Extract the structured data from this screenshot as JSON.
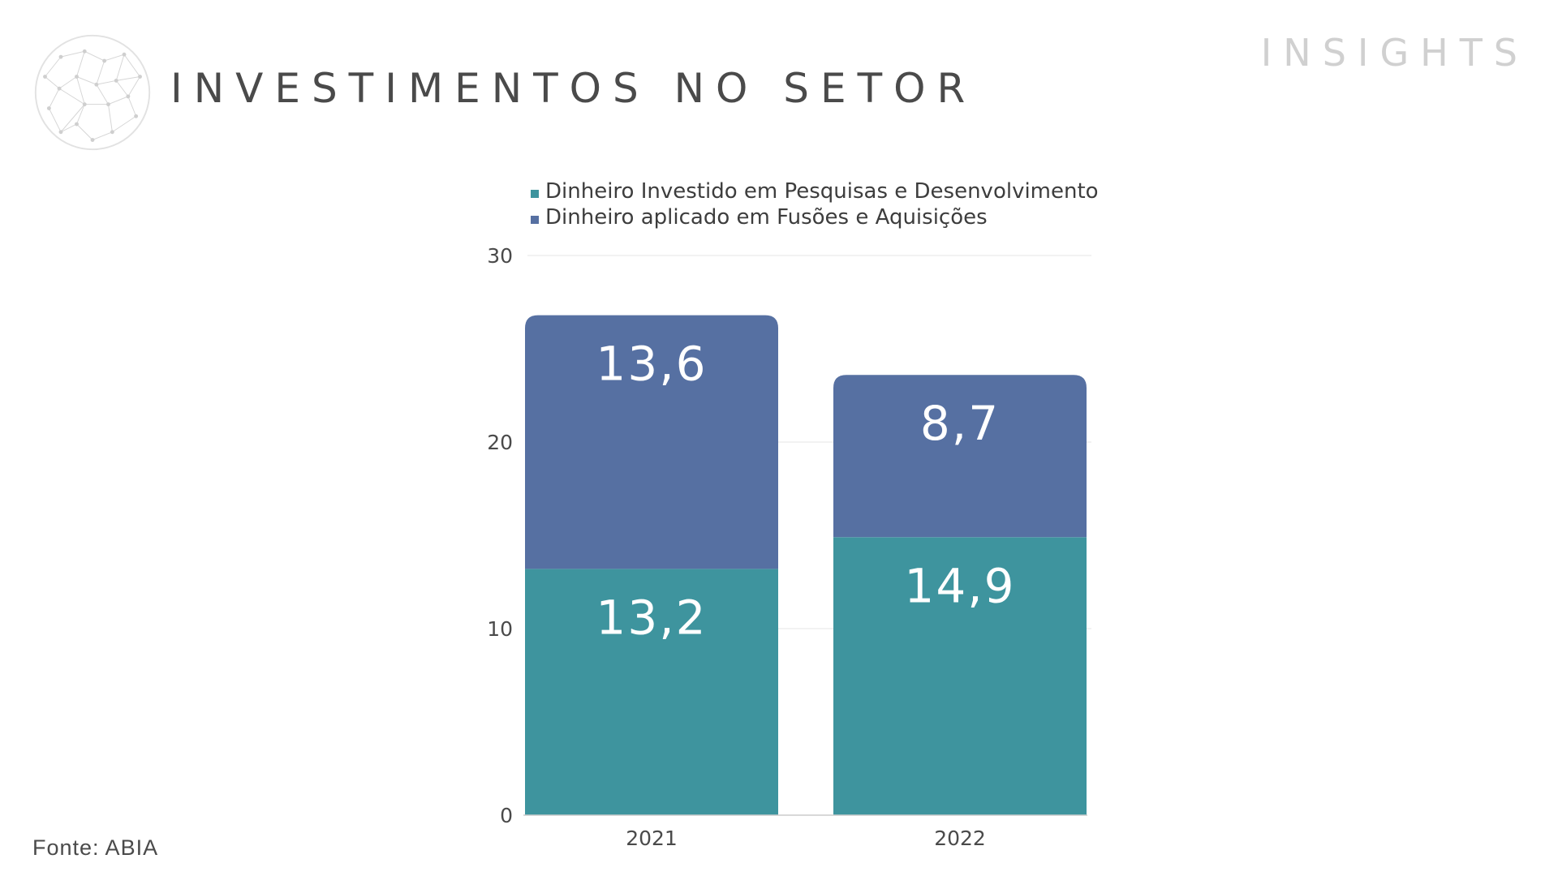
{
  "header": {
    "title": "INVESTIMENTOS NO SETOR",
    "brand": "INSIGHTS"
  },
  "footer": {
    "source": "Fonte: ABIA"
  },
  "colors": {
    "rd": "#3e949e",
    "ma": "#5670a2",
    "grid": "#eeeeee",
    "axis": "#cccccc"
  },
  "chart_data": {
    "type": "bar",
    "stacked": true,
    "categories": [
      "2021",
      "2022"
    ],
    "series": [
      {
        "name": "Dinheiro Investido em Pesquisas e Desenvolvimento",
        "values": [
          13.2,
          14.9
        ],
        "labels": [
          "13,2",
          "14,9"
        ],
        "color": "#3e949e"
      },
      {
        "name": "Dinheiro aplicado em Fusões e Aquisições",
        "values": [
          13.6,
          8.7
        ],
        "labels": [
          "13,6",
          "8,7"
        ],
        "color": "#5670a2"
      }
    ],
    "yticks": [
      "0",
      "10",
      "20",
      "30"
    ],
    "ylim": [
      0,
      30
    ],
    "legend": "top",
    "grid": true
  }
}
